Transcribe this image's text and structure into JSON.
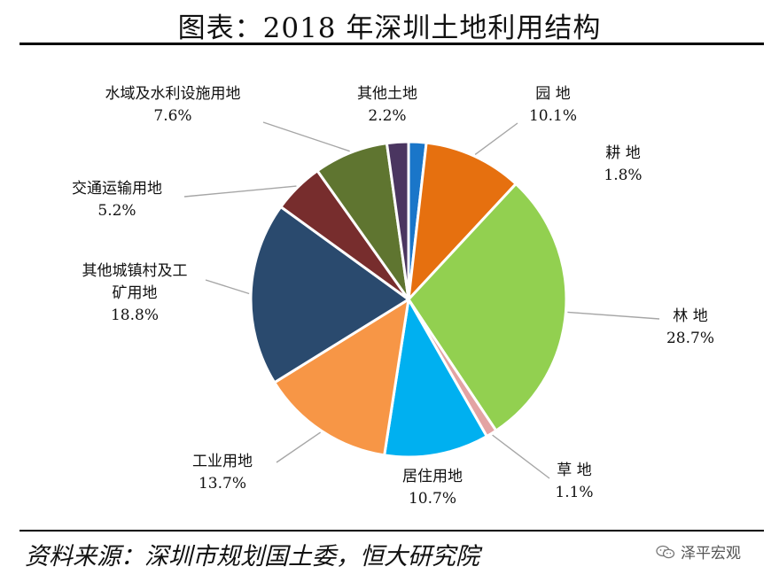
{
  "page": {
    "title": "图表：2018 年深圳土地利用结构",
    "source": "资料来源：深圳市规划国土委，恒大研究院",
    "watermark": "泽平宏观",
    "watermark_icon": "wechat-icon"
  },
  "chart_data": {
    "type": "pie",
    "title": "图表：2018 年深圳土地利用结构",
    "unit": "%",
    "slices": [
      {
        "label": "耕 地",
        "value": 1.8,
        "value_label": "1.8%",
        "color": "#1a76c9"
      },
      {
        "label": "园 地",
        "value": 10.1,
        "value_label": "10.1%",
        "color": "#e6700f"
      },
      {
        "label": "林 地",
        "value": 28.7,
        "value_label": "28.7%",
        "color": "#92d050"
      },
      {
        "label": "草 地",
        "value": 1.1,
        "value_label": "1.1%",
        "color": "#e3a3a3"
      },
      {
        "label": "居住用地",
        "value": 10.7,
        "value_label": "10.7%",
        "color": "#00b0f0"
      },
      {
        "label": "工业用地",
        "value": 13.7,
        "value_label": "13.7%",
        "color": "#f79646"
      },
      {
        "label": [
          "其他城镇村及工",
          "矿用地"
        ],
        "value": 18.8,
        "value_label": "18.8%",
        "color": "#2a4a6e"
      },
      {
        "label": "交通运输用地",
        "value": 5.2,
        "value_label": "5.2%",
        "color": "#772d2d"
      },
      {
        "label": "水域及水利设施用地",
        "value": 7.6,
        "value_label": "7.6%",
        "color": "#5f7530"
      },
      {
        "label": "其他土地",
        "value": 2.2,
        "value_label": "2.2%",
        "color": "#4a3560"
      }
    ],
    "start": "12 o'clock",
    "direction": "clockwise"
  }
}
